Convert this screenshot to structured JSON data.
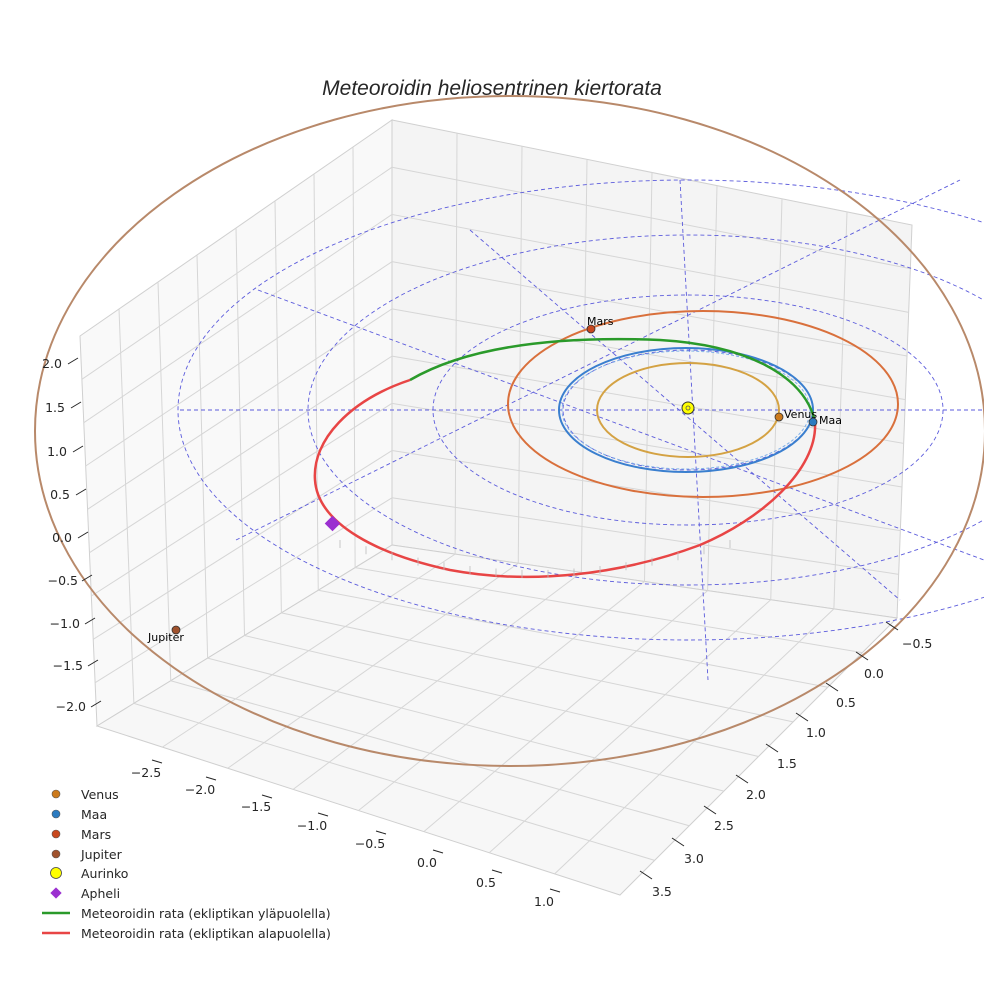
{
  "chart_data": {
    "type": "line3d",
    "title": "Meteoroidin heliosentrinen kiertorata",
    "axes": {
      "x": {
        "ticks": [
          "−2.5",
          "−2.0",
          "−1.5",
          "−1.0",
          "−0.5",
          "0.0",
          "0.5",
          "1.0"
        ]
      },
      "y": {
        "ticks": [
          "−0.5",
          "0.0",
          "0.5",
          "1.0",
          "1.5",
          "2.0",
          "2.5",
          "3.0",
          "3.5"
        ]
      },
      "z": {
        "ticks": [
          "2.0",
          "1.5",
          "1.0",
          "0.5",
          "0.0",
          "−0.5",
          "−1.0",
          "−1.5",
          "−2.0"
        ]
      }
    },
    "series": [
      {
        "name": "Venus",
        "kind": "orbit",
        "color": "#d4a243",
        "a_au": 0.72
      },
      {
        "name": "Maa",
        "kind": "orbit",
        "color": "#3a7fcf",
        "a_au": 1.0
      },
      {
        "name": "Mars",
        "kind": "orbit",
        "color": "#d9703c",
        "a_au": 1.52
      },
      {
        "name": "Jupiter",
        "kind": "orbit",
        "color": "#b8896a",
        "a_au": 5.2
      },
      {
        "name": "Meteoroidin rata (ekliptikan yläpuolella)",
        "kind": "trajectory",
        "color": "#2a9a2a"
      },
      {
        "name": "Meteoroidin rata (ekliptikan alapuolella)",
        "kind": "trajectory",
        "color": "#e84545"
      }
    ],
    "planet_labels": [
      "Venus",
      "Maa",
      "Mars",
      "Jupiter"
    ],
    "legend": {
      "position": "bottom-left",
      "items": [
        {
          "label": "Venus",
          "marker": "dot",
          "color": "#cc7a1c"
        },
        {
          "label": "Maa",
          "marker": "dot",
          "color": "#2b7bc0"
        },
        {
          "label": "Mars",
          "marker": "dot",
          "color": "#c8481e"
        },
        {
          "label": "Jupiter",
          "marker": "dot",
          "color": "#a0522d"
        },
        {
          "label": "Aurinko",
          "marker": "sun",
          "color": "#ffff00"
        },
        {
          "label": "Apheli",
          "marker": "diamond",
          "color": "#9b30d0"
        },
        {
          "label": "Meteoroidin rata (ekliptikan yläpuolella)",
          "marker": "line",
          "color": "#2a9a2a"
        },
        {
          "label": "Meteoroidin rata (ekliptikan alapuolella)",
          "marker": "line",
          "color": "#e84545"
        }
      ]
    }
  }
}
